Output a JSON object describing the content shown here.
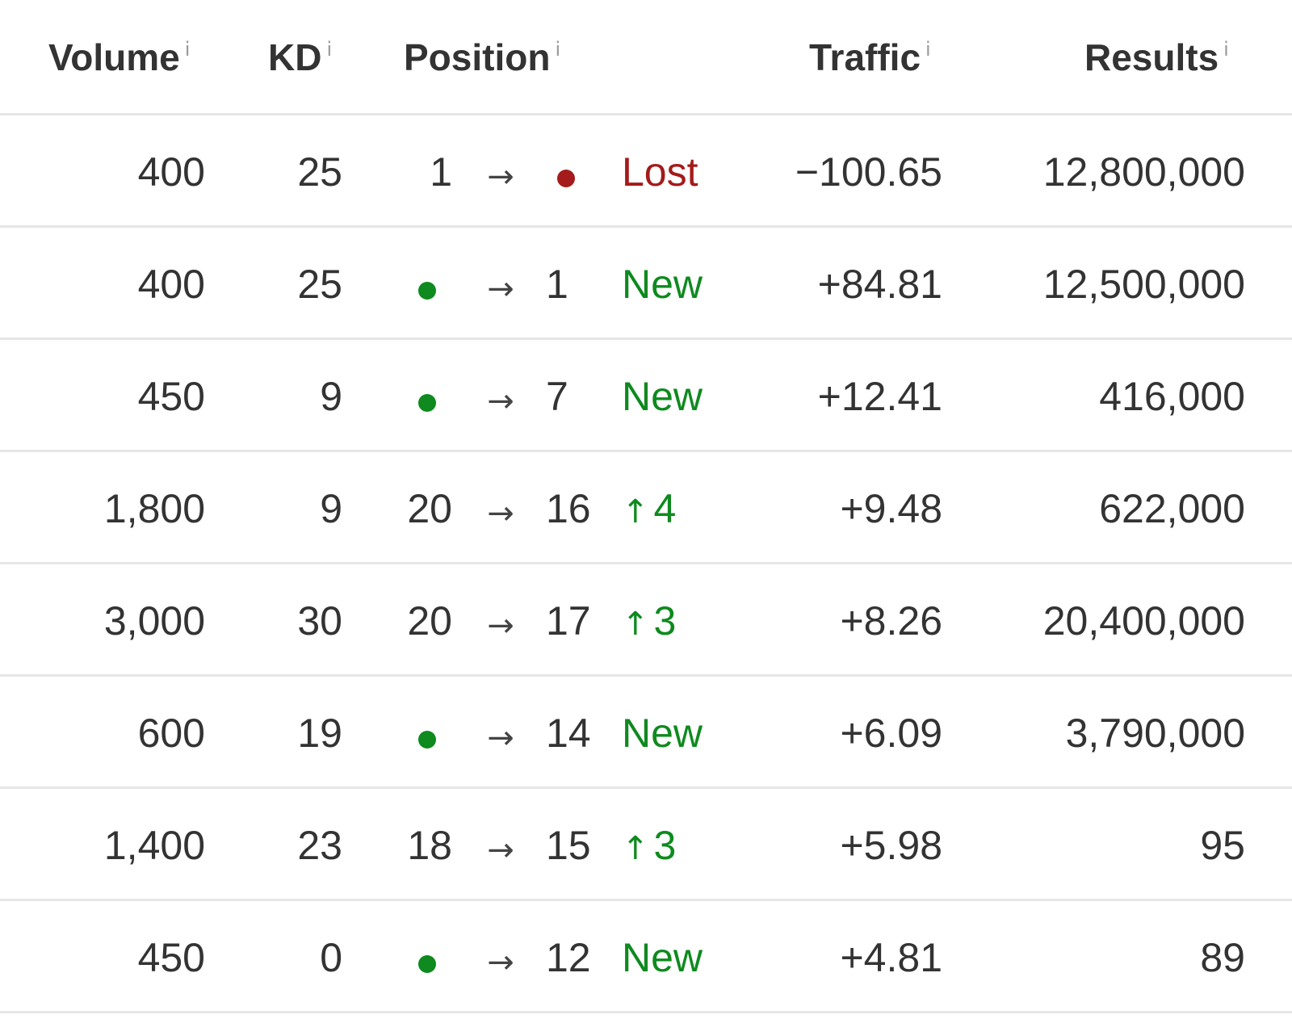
{
  "colors": {
    "lost": "#a31b1b",
    "new": "#0e8a1e",
    "text": "#333333",
    "divider": "#e6e6e6"
  },
  "headers": {
    "volume": "Volume",
    "kd": "KD",
    "position": "Position",
    "traffic": "Traffic",
    "results": "Results",
    "info_glyph": "i"
  },
  "arrow_glyph": "→",
  "up_glyph": "↑",
  "rows": [
    {
      "volume": "400",
      "kd": "25",
      "from": "1",
      "from_dot": false,
      "to": "",
      "to_dot": true,
      "to_dot_type": "lost",
      "change_type": "lost",
      "change": "Lost",
      "traffic": "−100.65",
      "results": "12,800,000"
    },
    {
      "volume": "400",
      "kd": "25",
      "from": "",
      "from_dot": true,
      "to": "1",
      "to_dot": false,
      "change_type": "new",
      "change": "New",
      "traffic": "+84.81",
      "results": "12,500,000"
    },
    {
      "volume": "450",
      "kd": "9",
      "from": "",
      "from_dot": true,
      "to": "7",
      "to_dot": false,
      "change_type": "new",
      "change": "New",
      "traffic": "+12.41",
      "results": "416,000"
    },
    {
      "volume": "1,800",
      "kd": "9",
      "from": "20",
      "from_dot": false,
      "to": "16",
      "to_dot": false,
      "change_type": "up",
      "change": "4",
      "traffic": "+9.48",
      "results": "622,000"
    },
    {
      "volume": "3,000",
      "kd": "30",
      "from": "20",
      "from_dot": false,
      "to": "17",
      "to_dot": false,
      "change_type": "up",
      "change": "3",
      "traffic": "+8.26",
      "results": "20,400,000"
    },
    {
      "volume": "600",
      "kd": "19",
      "from": "",
      "from_dot": true,
      "to": "14",
      "to_dot": false,
      "change_type": "new",
      "change": "New",
      "traffic": "+6.09",
      "results": "3,790,000"
    },
    {
      "volume": "1,400",
      "kd": "23",
      "from": "18",
      "from_dot": false,
      "to": "15",
      "to_dot": false,
      "change_type": "up",
      "change": "3",
      "traffic": "+5.98",
      "results": "95"
    },
    {
      "volume": "450",
      "kd": "0",
      "from": "",
      "from_dot": true,
      "to": "12",
      "to_dot": false,
      "change_type": "new",
      "change": "New",
      "traffic": "+4.81",
      "results": "89"
    }
  ]
}
